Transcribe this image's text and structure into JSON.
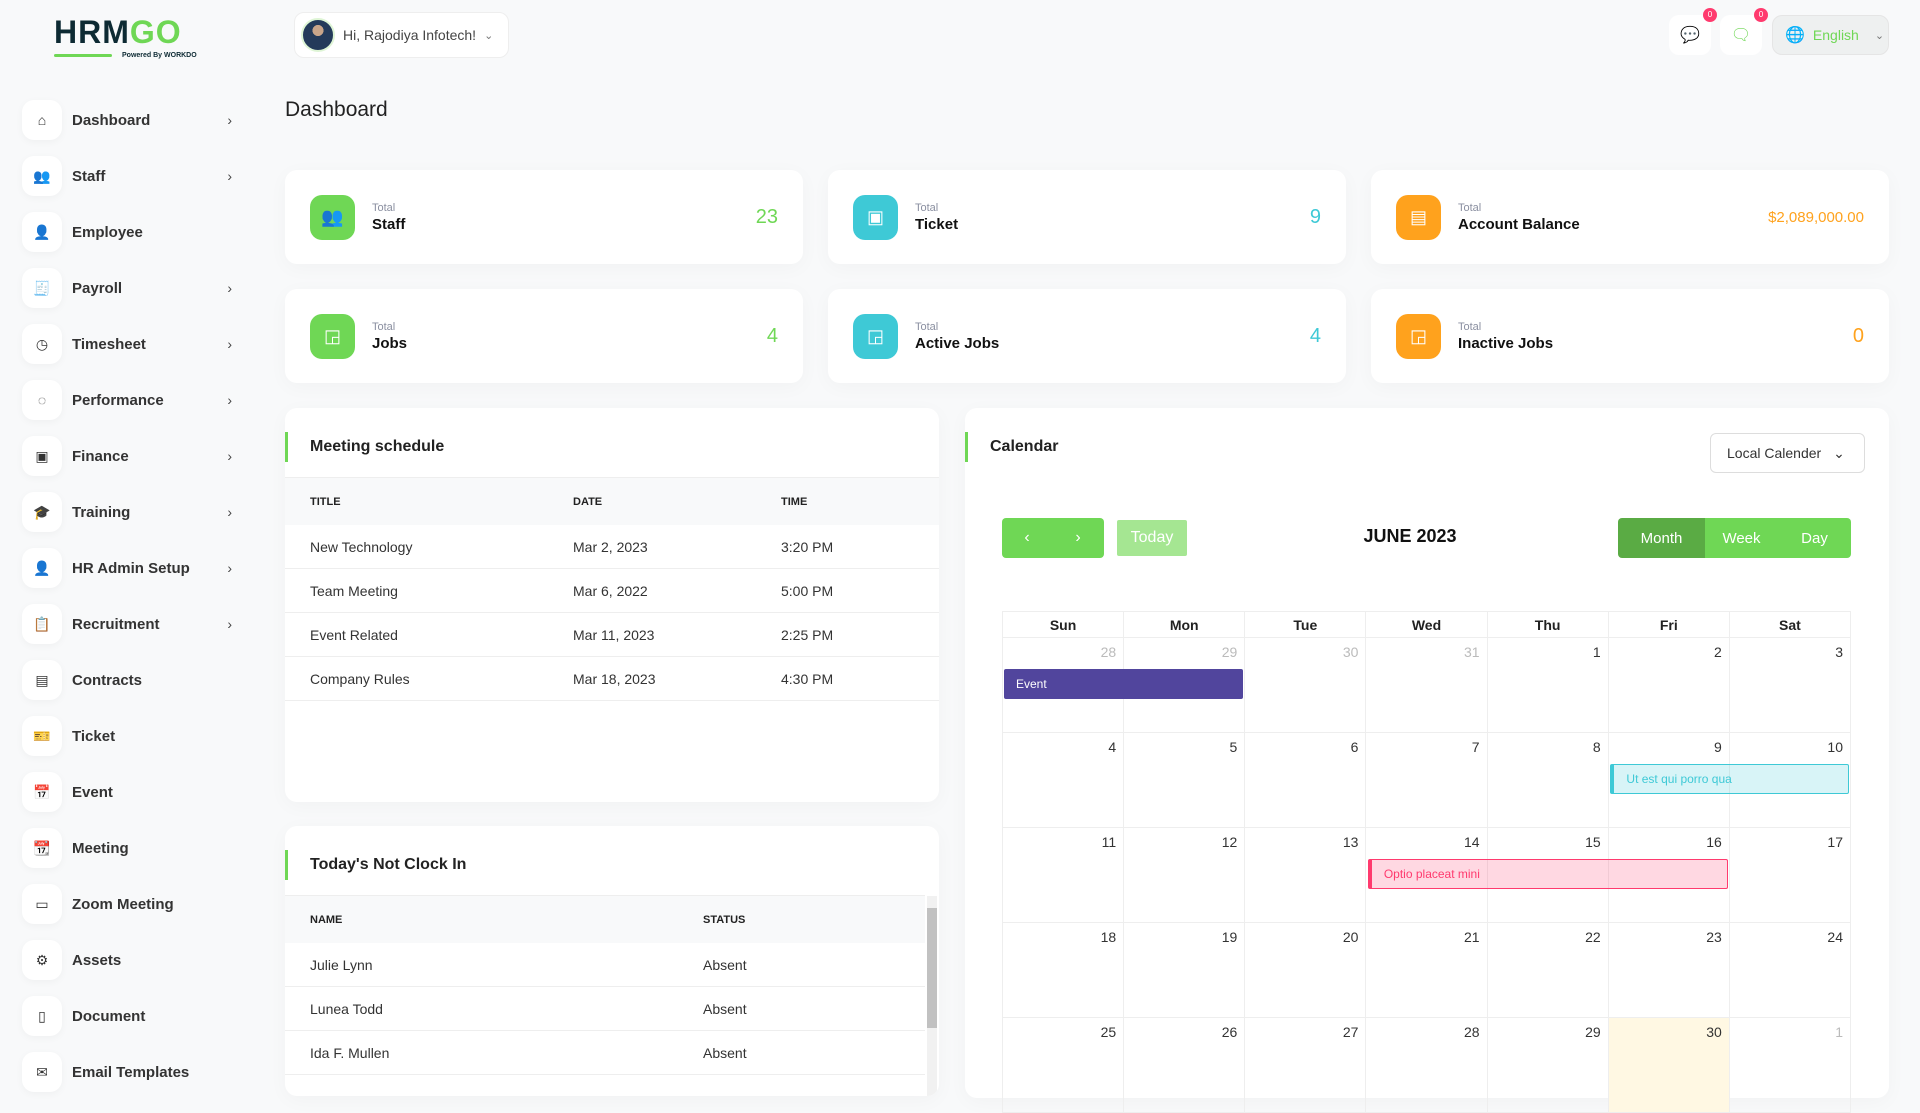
{
  "brand": {
    "logo_text": "HRMGO",
    "powered_by": "Powered By WORKDO"
  },
  "header": {
    "greeting": "Hi, Rajodiya Infotech!",
    "messages_count": "0",
    "notifications_count": "0",
    "language": "English"
  },
  "sidebar": {
    "items": [
      {
        "label": "Dashboard",
        "icon": "home-icon",
        "glyph": "⌂",
        "has_children": true
      },
      {
        "label": "Staff",
        "icon": "users-icon",
        "glyph": "👥",
        "has_children": true
      },
      {
        "label": "Employee",
        "icon": "user-icon",
        "glyph": "👤",
        "has_children": false
      },
      {
        "label": "Payroll",
        "icon": "receipt-icon",
        "glyph": "🧾",
        "has_children": true
      },
      {
        "label": "Timesheet",
        "icon": "clock-icon",
        "glyph": "◷",
        "has_children": true
      },
      {
        "label": "Performance",
        "icon": "target-icon",
        "glyph": "◌",
        "has_children": true
      },
      {
        "label": "Finance",
        "icon": "wallet-icon",
        "glyph": "▣",
        "has_children": true
      },
      {
        "label": "Training",
        "icon": "graduation-cap-icon",
        "glyph": "🎓",
        "has_children": true
      },
      {
        "label": "HR Admin Setup",
        "icon": "user-plus-icon",
        "glyph": "👤",
        "has_children": true
      },
      {
        "label": "Recruitment",
        "icon": "clipboard-icon",
        "glyph": "📋",
        "has_children": true
      },
      {
        "label": "Contracts",
        "icon": "contract-icon",
        "glyph": "▤",
        "has_children": false
      },
      {
        "label": "Ticket",
        "icon": "ticket-icon",
        "glyph": "🎫",
        "has_children": false
      },
      {
        "label": "Event",
        "icon": "calendar-icon",
        "glyph": "📅",
        "has_children": false
      },
      {
        "label": "Meeting",
        "icon": "calendar-clock-icon",
        "glyph": "📆",
        "has_children": false
      },
      {
        "label": "Zoom Meeting",
        "icon": "video-icon",
        "glyph": "▭",
        "has_children": false
      },
      {
        "label": "Assets",
        "icon": "gear-icon",
        "glyph": "⚙",
        "has_children": false
      },
      {
        "label": "Document",
        "icon": "file-icon",
        "glyph": "▯",
        "has_children": false
      },
      {
        "label": "Email Templates",
        "icon": "mail-template-icon",
        "glyph": "✉",
        "has_children": false
      }
    ]
  },
  "page": {
    "title": "Dashboard"
  },
  "stats": [
    {
      "small": "Total",
      "label": "Staff",
      "value": "23",
      "color": "#6fd755",
      "icon": "users-icon",
      "glyph": "👥"
    },
    {
      "small": "Total",
      "label": "Ticket",
      "value": "9",
      "color": "#3ec9d6",
      "icon": "ticket-icon",
      "glyph": "▣"
    },
    {
      "small": "Total",
      "label": "Account Balance",
      "value": "$2,089,000.00",
      "color": "#ffa21d",
      "icon": "wallet-icon",
      "glyph": "▤"
    },
    {
      "small": "Total",
      "label": "Jobs",
      "value": "4",
      "color": "#6fd755",
      "icon": "cast-icon",
      "glyph": "◲"
    },
    {
      "small": "Total",
      "label": "Active Jobs",
      "value": "4",
      "color": "#3ec9d6",
      "icon": "cast-icon",
      "glyph": "◲"
    },
    {
      "small": "Total",
      "label": "Inactive Jobs",
      "value": "0",
      "color": "#ffa21d",
      "icon": "cast-icon",
      "glyph": "◲"
    }
  ],
  "meetings": {
    "title": "Meeting schedule",
    "columns": [
      "TITLE",
      "DATE",
      "TIME"
    ],
    "rows": [
      [
        "New Technology",
        "Mar 2, 2023",
        "3:20 PM"
      ],
      [
        "Team Meeting",
        "Mar 6, 2022",
        "5:00 PM"
      ],
      [
        "Event Related",
        "Mar 11, 2023",
        "2:25 PM"
      ],
      [
        "Company Rules",
        "Mar 18, 2023",
        "4:30 PM"
      ]
    ]
  },
  "not_clock_in": {
    "title": "Today's Not Clock In",
    "columns": [
      "NAME",
      "STATUS"
    ],
    "rows": [
      [
        "Julie Lynn",
        "Absent"
      ],
      [
        "Lunea Todd",
        "Absent"
      ],
      [
        "Ida F. Mullen",
        "Absent"
      ]
    ]
  },
  "calendar": {
    "title": "Calendar",
    "source_select": "Local Calender",
    "today_label": "Today",
    "month_title": "JUNE 2023",
    "views": [
      "Month",
      "Week",
      "Day"
    ],
    "active_view": "Month",
    "weekdays": [
      "Sun",
      "Mon",
      "Tue",
      "Wed",
      "Thu",
      "Fri",
      "Sat"
    ],
    "weeks": [
      [
        "28",
        "29",
        "30",
        "31",
        "1",
        "2",
        "3"
      ],
      [
        "4",
        "5",
        "6",
        "7",
        "8",
        "9",
        "10"
      ],
      [
        "11",
        "12",
        "13",
        "14",
        "15",
        "16",
        "17"
      ],
      [
        "18",
        "19",
        "20",
        "21",
        "22",
        "23",
        "24"
      ],
      [
        "25",
        "26",
        "27",
        "28",
        "29",
        "30",
        "1"
      ]
    ],
    "today": "30",
    "events": [
      {
        "title": "Event",
        "color": "#51459d"
      },
      {
        "title": "Ut est qui porro qua",
        "color": "#3ec9d6"
      },
      {
        "title": "Optio placeat mini",
        "color": "#ff3a6e"
      }
    ]
  }
}
